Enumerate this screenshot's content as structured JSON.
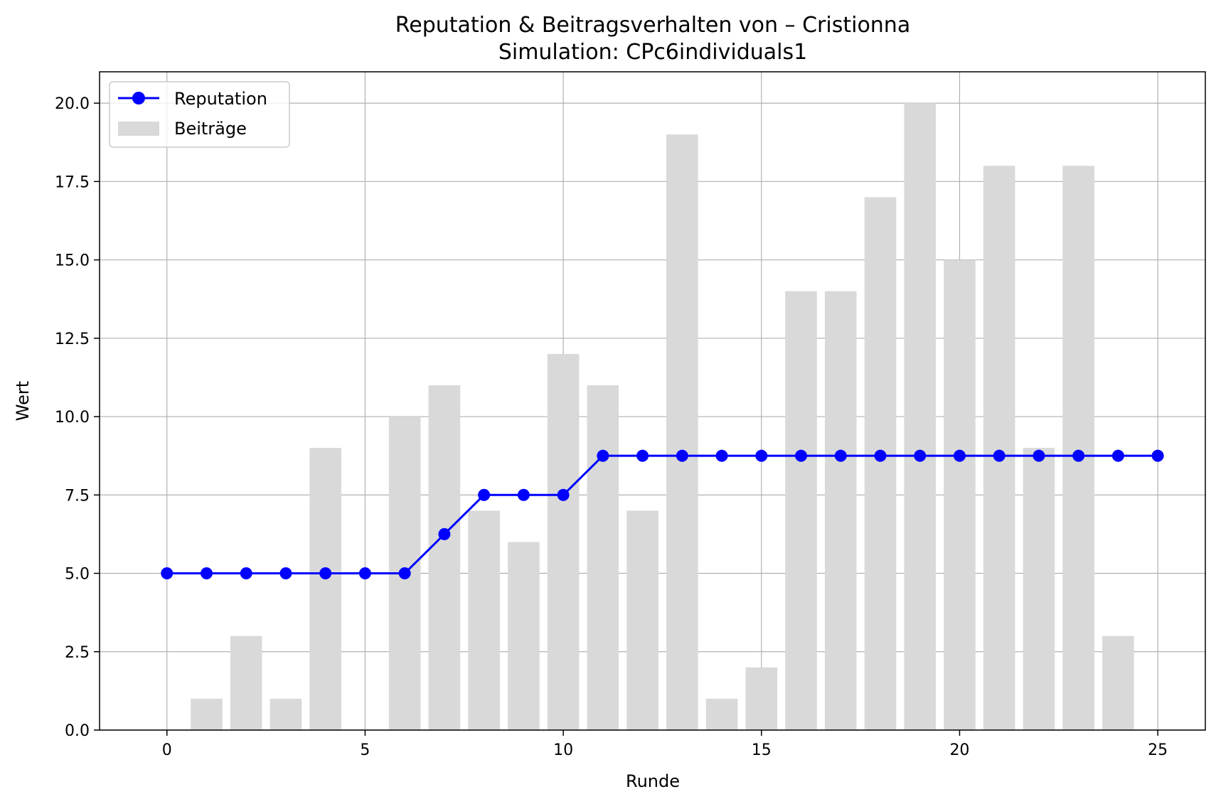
{
  "chart_data": {
    "type": "bar",
    "title": "Reputation & Beitragsverhalten von – Cristionna",
    "subtitle": "Simulation: CPc6individuals1",
    "xlabel": "Runde",
    "ylabel": "Wert",
    "xlim": [
      -1.7,
      26.2
    ],
    "ylim": [
      0,
      21
    ],
    "xticks": [
      0,
      5,
      10,
      15,
      20,
      25
    ],
    "yticks": [
      0.0,
      2.5,
      5.0,
      7.5,
      10.0,
      12.5,
      15.0,
      17.5,
      20.0
    ],
    "xtick_labels": [
      "0",
      "5",
      "10",
      "15",
      "20",
      "25"
    ],
    "ytick_labels": [
      "0.0",
      "2.5",
      "5.0",
      "7.5",
      "10.0",
      "12.5",
      "15.0",
      "17.5",
      "20.0"
    ],
    "grid": true,
    "legend_position": "top-left",
    "series": [
      {
        "name": "Reputation",
        "kind": "line",
        "color": "#0000ff",
        "marker": "circle",
        "x": [
          0,
          1,
          2,
          3,
          4,
          5,
          6,
          7,
          8,
          9,
          10,
          11,
          12,
          13,
          14,
          15,
          16,
          17,
          18,
          19,
          20,
          21,
          22,
          23,
          24,
          25
        ],
        "values": [
          5.0,
          5.0,
          5.0,
          5.0,
          5.0,
          5.0,
          5.0,
          6.25,
          7.5,
          7.5,
          7.5,
          8.75,
          8.75,
          8.75,
          8.75,
          8.75,
          8.75,
          8.75,
          8.75,
          8.75,
          8.75,
          8.75,
          8.75,
          8.75,
          8.75,
          8.75
        ]
      },
      {
        "name": "Beiträge",
        "kind": "bar",
        "color": "#d9d9d9",
        "x": [
          1,
          2,
          3,
          4,
          6,
          7,
          8,
          9,
          10,
          11,
          12,
          13,
          14,
          15,
          16,
          17,
          18,
          19,
          20,
          21,
          22,
          23,
          24
        ],
        "values": [
          1,
          3,
          1,
          9,
          10,
          11,
          7,
          6,
          12,
          11,
          7,
          19,
          1,
          2,
          14,
          14,
          17,
          20,
          15,
          18,
          9,
          18,
          3
        ]
      }
    ]
  }
}
